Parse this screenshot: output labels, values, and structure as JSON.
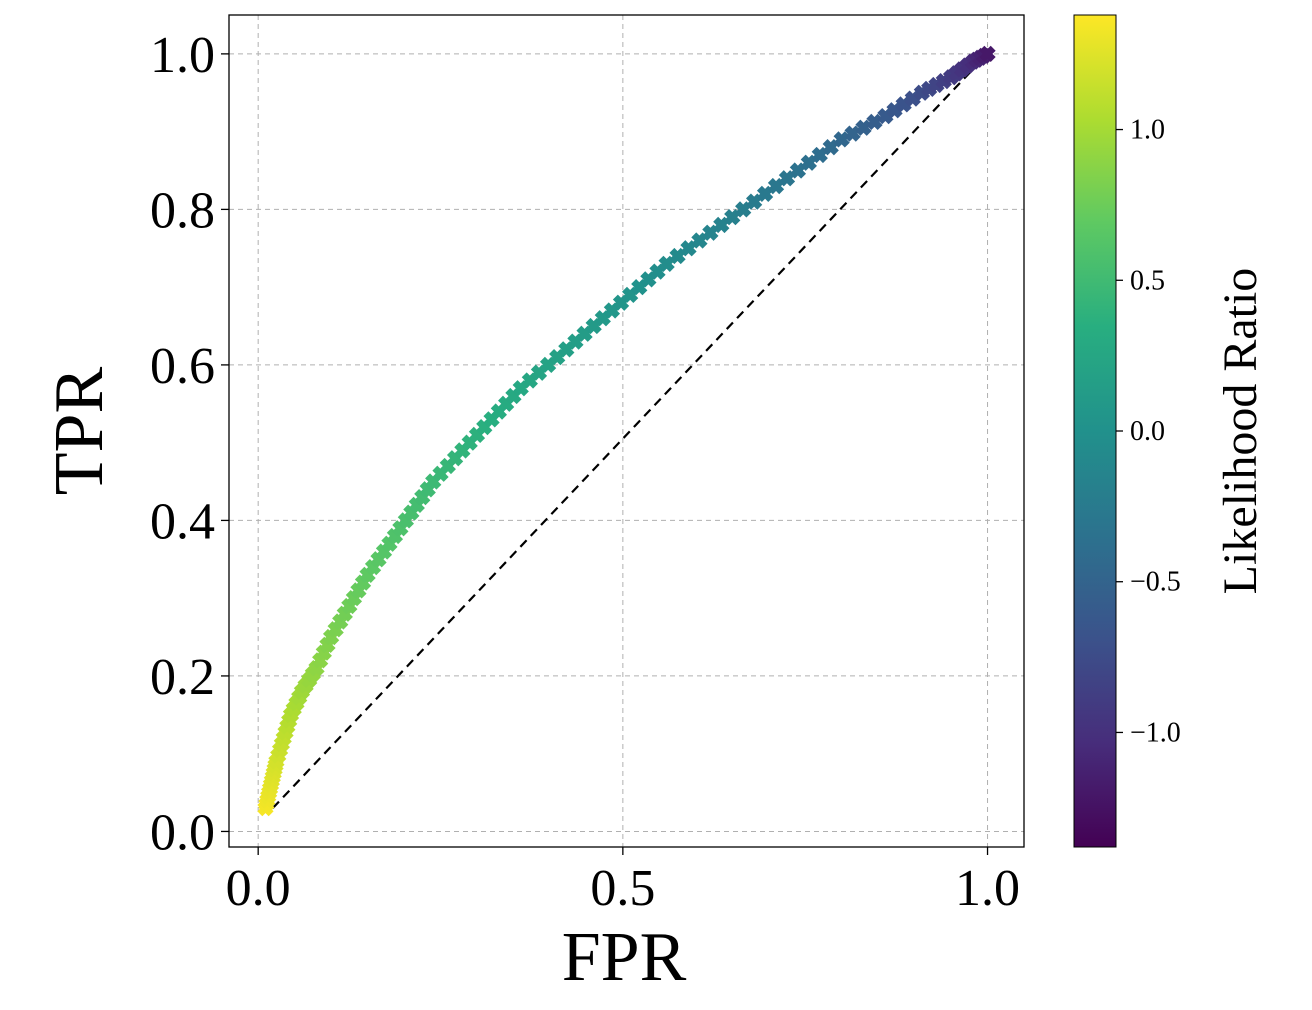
{
  "chart_data": {
    "type": "scatter",
    "title": "",
    "xlabel": "FPR",
    "ylabel": "TPR",
    "xlim": [
      -0.04,
      1.05
    ],
    "ylim": [
      -0.02,
      1.05
    ],
    "xticks": [
      0.0,
      0.5,
      1.0
    ],
    "xtick_labels": [
      "0.0",
      "0.5",
      "1.0"
    ],
    "yticks": [
      0.0,
      0.2,
      0.4,
      0.6,
      0.8,
      1.0
    ],
    "ytick_labels": [
      "0.0",
      "0.2",
      "0.4",
      "0.6",
      "0.8",
      "1.0"
    ],
    "grid": true,
    "marker": "plus-filled",
    "colormap": "viridis",
    "colorbar": {
      "label": "Likelihood Ratio",
      "range": [
        -1.38,
        1.38
      ],
      "ticks": [
        1.0,
        0.5,
        0.0,
        -0.5,
        -1.0
      ],
      "tick_labels": [
        "1.0",
        "0.5",
        "0.0",
        "−0.5",
        "−1.0"
      ]
    },
    "reference_line": {
      "style": "dashed",
      "color": "#000000",
      "x": [
        0.02,
        1.0
      ],
      "y": [
        0.03,
        1.0
      ]
    },
    "series": [
      {
        "points": [
          {
            "x": 0.01,
            "y": 0.03,
            "c": 1.35
          },
          {
            "x": 0.015,
            "y": 0.05,
            "c": 1.3
          },
          {
            "x": 0.02,
            "y": 0.07,
            "c": 1.25
          },
          {
            "x": 0.025,
            "y": 0.09,
            "c": 1.2
          },
          {
            "x": 0.035,
            "y": 0.12,
            "c": 1.12
          },
          {
            "x": 0.045,
            "y": 0.15,
            "c": 1.05
          },
          {
            "x": 0.06,
            "y": 0.18,
            "c": 0.97
          },
          {
            "x": 0.08,
            "y": 0.21,
            "c": 0.9
          },
          {
            "x": 0.1,
            "y": 0.25,
            "c": 0.83
          },
          {
            "x": 0.125,
            "y": 0.29,
            "c": 0.76
          },
          {
            "x": 0.15,
            "y": 0.33,
            "c": 0.69
          },
          {
            "x": 0.18,
            "y": 0.37,
            "c": 0.62
          },
          {
            "x": 0.21,
            "y": 0.41,
            "c": 0.55
          },
          {
            "x": 0.24,
            "y": 0.45,
            "c": 0.48
          },
          {
            "x": 0.28,
            "y": 0.49,
            "c": 0.41
          },
          {
            "x": 0.32,
            "y": 0.53,
            "c": 0.34
          },
          {
            "x": 0.36,
            "y": 0.57,
            "c": 0.27
          },
          {
            "x": 0.41,
            "y": 0.61,
            "c": 0.19
          },
          {
            "x": 0.46,
            "y": 0.65,
            "c": 0.11
          },
          {
            "x": 0.51,
            "y": 0.69,
            "c": 0.03
          },
          {
            "x": 0.56,
            "y": 0.73,
            "c": -0.05
          },
          {
            "x": 0.62,
            "y": 0.77,
            "c": -0.14
          },
          {
            "x": 0.68,
            "y": 0.81,
            "c": -0.24
          },
          {
            "x": 0.74,
            "y": 0.85,
            "c": -0.34
          },
          {
            "x": 0.8,
            "y": 0.89,
            "c": -0.46
          },
          {
            "x": 0.86,
            "y": 0.92,
            "c": -0.6
          },
          {
            "x": 0.91,
            "y": 0.95,
            "c": -0.75
          },
          {
            "x": 0.95,
            "y": 0.97,
            "c": -0.9
          },
          {
            "x": 0.98,
            "y": 0.99,
            "c": -1.05
          },
          {
            "x": 1.0,
            "y": 1.0,
            "c": -1.2
          }
        ]
      }
    ]
  }
}
